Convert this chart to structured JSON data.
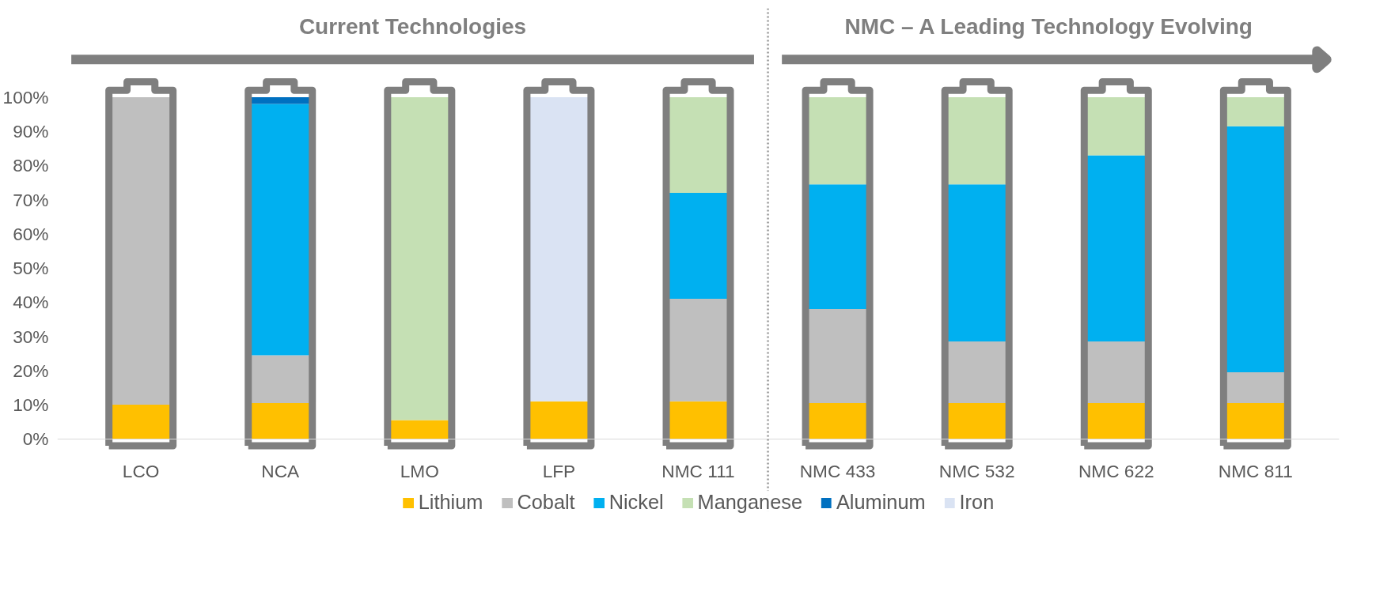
{
  "chart_data": {
    "type": "bar",
    "stacked": true,
    "categories": [
      "LCO",
      "NCA",
      "LMO",
      "LFP",
      "NMC 111",
      "NMC 433",
      "NMC 532",
      "NMC 622",
      "NMC 811"
    ],
    "series": [
      {
        "name": "Lithium",
        "color": "#ffc000",
        "values": [
          10,
          10.5,
          5.5,
          11,
          11,
          10.5,
          10.5,
          10.5,
          10.5
        ]
      },
      {
        "name": "Cobalt",
        "color": "#bfbfbf",
        "values": [
          90,
          14,
          null,
          null,
          30,
          27.5,
          18,
          18,
          9
        ]
      },
      {
        "name": "Nickel",
        "color": "#00b0f0",
        "values": [
          null,
          73.5,
          null,
          null,
          31,
          36.5,
          46,
          54.5,
          72
        ]
      },
      {
        "name": "Manganese",
        "color": "#c5e0b4",
        "values": [
          null,
          null,
          94.5,
          null,
          28,
          25.5,
          25.5,
          17,
          8.5
        ]
      },
      {
        "name": "Aluminum",
        "color": "#0070c0",
        "values": [
          null,
          2,
          null,
          null,
          null,
          null,
          null,
          null,
          null
        ]
      },
      {
        "name": "Iron",
        "color": "#dae3f3",
        "values": [
          null,
          null,
          null,
          89,
          null,
          null,
          null,
          null,
          null
        ]
      }
    ],
    "ylim": [
      0,
      100
    ],
    "yticks": [
      {
        "value": 0,
        "label": "0%"
      },
      {
        "value": 10,
        "label": "10%"
      },
      {
        "value": 20,
        "label": "20%"
      },
      {
        "value": 30,
        "label": "30%"
      },
      {
        "value": 40,
        "label": "40%"
      },
      {
        "value": 50,
        "label": "50%"
      },
      {
        "value": 60,
        "label": "60%"
      },
      {
        "value": 70,
        "label": "70%"
      },
      {
        "value": 80,
        "label": "80%"
      },
      {
        "value": 90,
        "label": "90%"
      },
      {
        "value": 100,
        "label": "100%"
      }
    ],
    "annotations": [
      "Current Technologies",
      "NMC – A Leading Technology Evolving"
    ],
    "legend": "bottom",
    "grid": false
  }
}
